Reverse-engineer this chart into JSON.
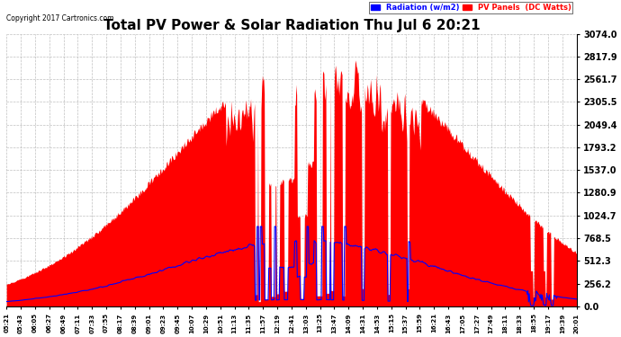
{
  "title": "Total PV Power & Solar Radiation Thu Jul 6 20:21",
  "copyright": "Copyright 2017 Cartronics.com",
  "legend_radiation": "Radiation (w/m2)",
  "legend_pv": "PV Panels  (DC Watts)",
  "y_max": 3074.0,
  "y_ticks": [
    0.0,
    256.2,
    512.3,
    768.5,
    1024.7,
    1280.9,
    1537.0,
    1793.2,
    2049.4,
    2305.5,
    2561.7,
    2817.9,
    3074.0
  ],
  "background_color": "#ffffff",
  "plot_bg_color": "#ffffff",
  "grid_color": "#b0b0b0",
  "fill_color": "#ff0000",
  "line_color_radiation": "#0000ff",
  "figsize": [
    6.9,
    3.75
  ],
  "dpi": 100,
  "tick_labels": [
    "05:21",
    "05:43",
    "06:05",
    "06:27",
    "06:49",
    "07:11",
    "07:33",
    "07:55",
    "08:17",
    "08:39",
    "09:01",
    "09:23",
    "09:45",
    "10:07",
    "10:29",
    "10:51",
    "11:13",
    "11:35",
    "11:57",
    "12:19",
    "12:41",
    "13:03",
    "13:25",
    "13:47",
    "14:09",
    "14:31",
    "14:53",
    "15:15",
    "15:37",
    "15:59",
    "16:21",
    "16:43",
    "17:05",
    "17:27",
    "17:49",
    "18:11",
    "18:33",
    "18:55",
    "19:17",
    "19:39",
    "20:01"
  ]
}
